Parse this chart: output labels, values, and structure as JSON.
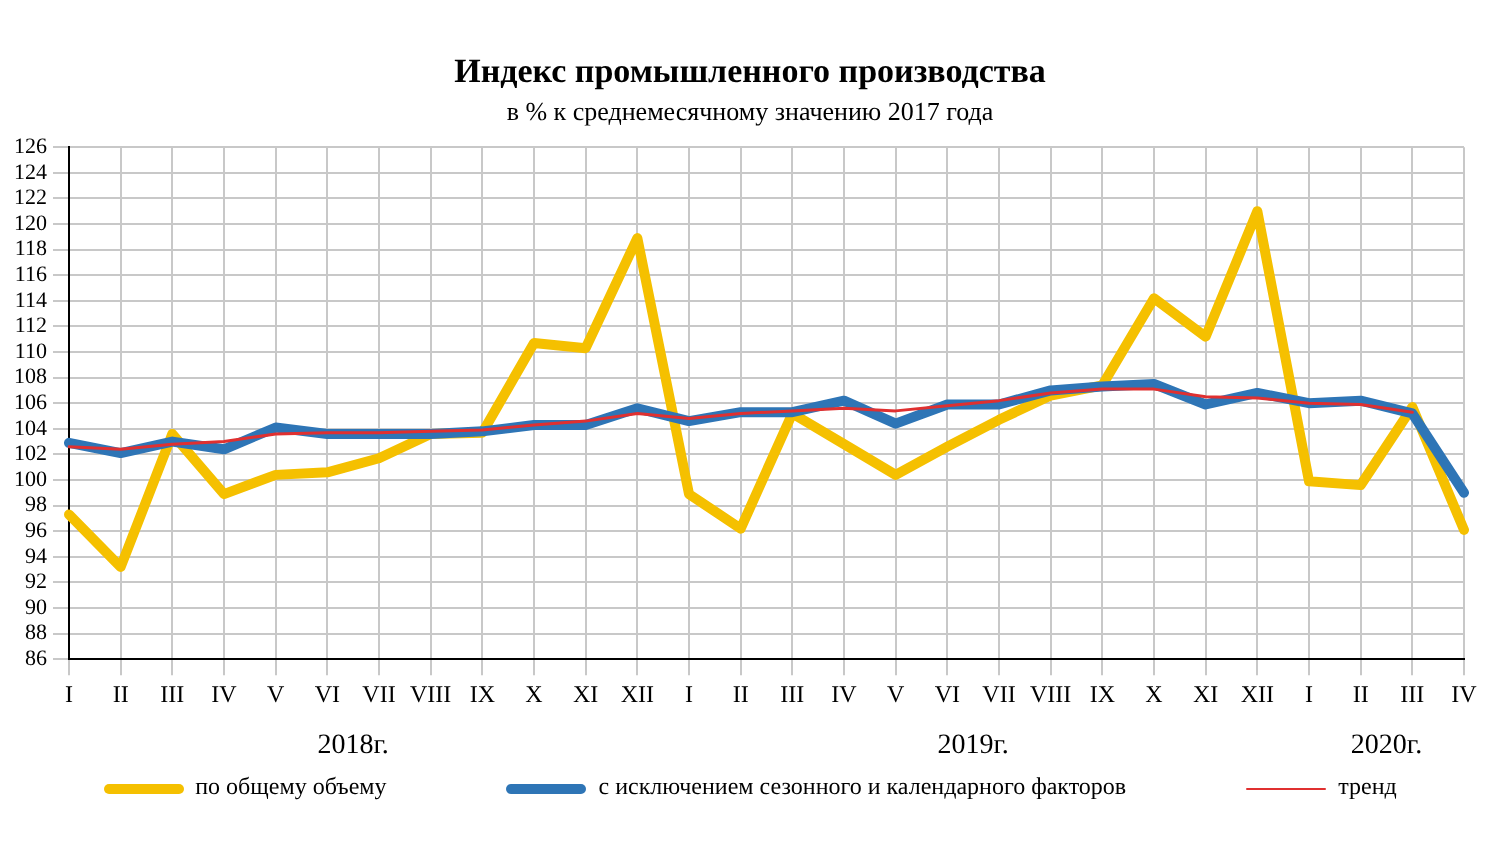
{
  "chart_data": {
    "type": "line",
    "title": "Индекс промышленного производства",
    "subtitle": "в % к среднемесячному значению 2017  года",
    "categories": [
      "I",
      "II",
      "III",
      "IV",
      "V",
      "VI",
      "VII",
      "VIII",
      "IX",
      "X",
      "XI",
      "XII",
      "I",
      "II",
      "III",
      "IV",
      "V",
      "VI",
      "VII",
      "VIII",
      "IX",
      "X",
      "XI",
      "XII",
      "I",
      "II",
      "III",
      "IV"
    ],
    "annotations": [
      "2018г.",
      "2019г.",
      "2020г."
    ],
    "series": [
      {
        "name": "по общему объему",
        "color": "#f5c000",
        "values": [
          97.3,
          93.2,
          103.6,
          98.9,
          100.4,
          100.6,
          101.7,
          103.6,
          103.7,
          110.7,
          110.3,
          118.9,
          98.9,
          96.2,
          105.2,
          102.8,
          100.4,
          102.6,
          104.7,
          106.6,
          107.4,
          114.2,
          111.2,
          121.0,
          99.9,
          99.6,
          105.7,
          96.1
        ]
      },
      {
        "name": "с исключением сезонного и календарного факторов",
        "color": "#2e75b6",
        "values": [
          102.9,
          102.1,
          103.0,
          102.4,
          104.1,
          103.6,
          103.6,
          103.6,
          103.8,
          104.3,
          104.3,
          105.6,
          104.6,
          105.3,
          105.3,
          106.2,
          104.4,
          105.9,
          105.9,
          107.0,
          107.3,
          107.5,
          105.9,
          106.8,
          106.0,
          106.2,
          105.2,
          99.0
        ]
      },
      {
        "name": "тренд",
        "color": "#e03030",
        "values": [
          102.6,
          102.4,
          102.8,
          103.0,
          103.6,
          103.7,
          103.7,
          103.8,
          103.9,
          104.3,
          104.6,
          105.2,
          104.8,
          105.2,
          105.4,
          105.6,
          105.4,
          105.8,
          106.2,
          106.8,
          107.1,
          107.1,
          106.5,
          106.4,
          106.0,
          105.9,
          105.3,
          null
        ]
      }
    ],
    "ylim": [
      86,
      126
    ],
    "yticks": [
      86,
      88,
      90,
      92,
      94,
      96,
      98,
      100,
      102,
      104,
      106,
      108,
      110,
      112,
      114,
      116,
      118,
      120,
      122,
      124,
      126
    ],
    "grid": true,
    "legend": "bottom",
    "marker": "none",
    "line_style": "solid"
  }
}
